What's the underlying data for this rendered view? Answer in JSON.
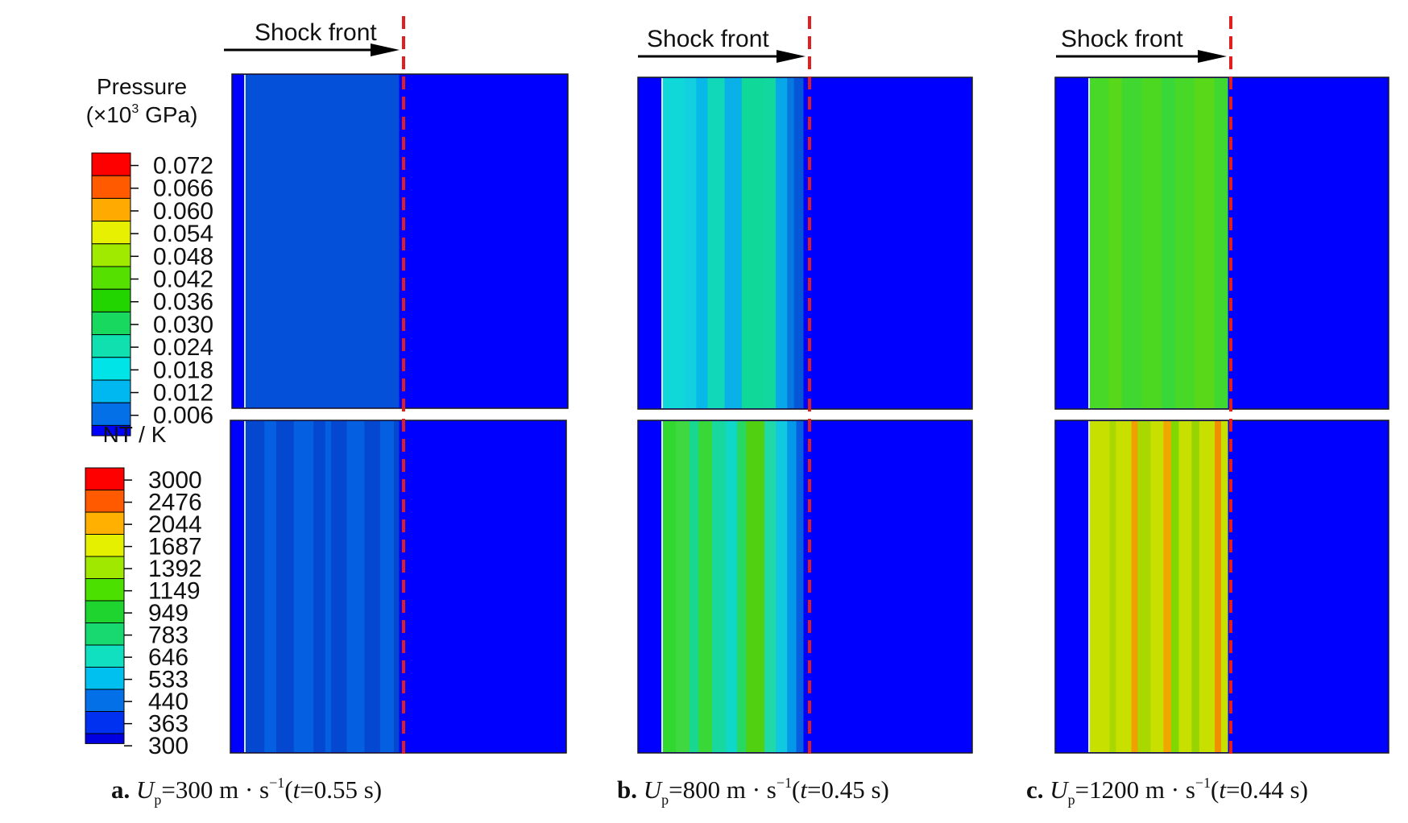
{
  "legend_pressure": {
    "title_line1": "Pressure",
    "title_line2_prefix": "(×10",
    "title_line2_sup": "3",
    "title_line2_suffix": " GPa)",
    "ticks": [
      "0.072",
      "0.066",
      "0.060",
      "0.054",
      "0.048",
      "0.042",
      "0.036",
      "0.030",
      "0.024",
      "0.018",
      "0.012",
      "0.006"
    ],
    "colors": [
      "#ff0000",
      "#ff5a00",
      "#ffaa00",
      "#e6f000",
      "#a0ea00",
      "#55e000",
      "#22d400",
      "#18d860",
      "#10e0b0",
      "#00e4e8",
      "#00b8f0",
      "#0470e8",
      "#0000ff"
    ]
  },
  "legend_temperature": {
    "title": "NT / K",
    "ticks": [
      "3000",
      "2476",
      "2044",
      "1687",
      "1392",
      "1149",
      "949",
      "783",
      "646",
      "533",
      "440",
      "363",
      "300"
    ],
    "colors": [
      "#ff0000",
      "#ff5a00",
      "#ffb000",
      "#e4f000",
      "#a0e800",
      "#4ce000",
      "#20d430",
      "#18d870",
      "#10e0c0",
      "#00c0f0",
      "#0470e8",
      "#0030f0",
      "#0000e0"
    ]
  },
  "shock_label": "Shock front",
  "panels": [
    {
      "letter": "a.",
      "up_value": "=300",
      "time_value": "=0.55",
      "pressure_band": [
        {
          "w": 1.0,
          "c": "#0450d8"
        }
      ],
      "temp_bands": [
        {
          "w": 2,
          "c": "#0448d0"
        },
        {
          "w": 1.2,
          "c": "#0460e0"
        },
        {
          "w": 1.8,
          "c": "#0448d0"
        },
        {
          "w": 2,
          "c": "#0460e0"
        },
        {
          "w": 1.2,
          "c": "#0448d0"
        },
        {
          "w": 0.6,
          "c": "#0460e0"
        },
        {
          "w": 1.6,
          "c": "#0448d0"
        },
        {
          "w": 1.8,
          "c": "#0460e0"
        },
        {
          "w": 1.6,
          "c": "#0448d0"
        },
        {
          "w": 1.4,
          "c": "#0460e0"
        },
        {
          "w": 0.5,
          "c": "#0448d0"
        }
      ]
    },
    {
      "letter": "b.",
      "up_value": "=800",
      "time_value": "=0.45",
      "pressure_band": [
        {
          "w": 2,
          "c": "#10d8d8"
        },
        {
          "w": 1,
          "c": "#12d0e0"
        },
        {
          "w": 1,
          "c": "#08b8e8"
        },
        {
          "w": 1.5,
          "c": "#10d8b8"
        },
        {
          "w": 1.5,
          "c": "#0ab0e8"
        },
        {
          "w": 2,
          "c": "#10d898"
        },
        {
          "w": 1,
          "c": "#12d8a0"
        },
        {
          "w": 1,
          "c": "#08a8e8"
        },
        {
          "w": 0.6,
          "c": "#0878e0"
        },
        {
          "w": 0.8,
          "c": "#0458d8"
        }
      ],
      "temp_bands": [
        {
          "w": 1.2,
          "c": "#30d830"
        },
        {
          "w": 1.2,
          "c": "#40d840"
        },
        {
          "w": 0.8,
          "c": "#18d890"
        },
        {
          "w": 1.2,
          "c": "#38d838"
        },
        {
          "w": 1.2,
          "c": "#18d8a0"
        },
        {
          "w": 1,
          "c": "#10d8c8"
        },
        {
          "w": 0.8,
          "c": "#28d860"
        },
        {
          "w": 1.6,
          "c": "#50d010"
        },
        {
          "w": 1,
          "c": "#20d8a8"
        },
        {
          "w": 1,
          "c": "#10c8e0"
        },
        {
          "w": 0.8,
          "c": "#0498e8"
        },
        {
          "w": 0.6,
          "c": "#0460e0"
        }
      ]
    },
    {
      "letter": "c.",
      "up_value": "=1200",
      "time_value": "=0.44",
      "pressure_band": [
        {
          "w": 1.5,
          "c": "#48d828"
        },
        {
          "w": 1,
          "c": "#58d818"
        },
        {
          "w": 1.5,
          "c": "#40d830"
        },
        {
          "w": 1.5,
          "c": "#4cd820"
        },
        {
          "w": 1,
          "c": "#38d838"
        },
        {
          "w": 1.5,
          "c": "#48d828"
        },
        {
          "w": 1.5,
          "c": "#58d818"
        },
        {
          "w": 1,
          "c": "#40d830"
        }
      ],
      "temp_bands": [
        {
          "w": 1.6,
          "c": "#c8e000"
        },
        {
          "w": 0.5,
          "c": "#a8d800"
        },
        {
          "w": 1.2,
          "c": "#c8e000"
        },
        {
          "w": 0.5,
          "c": "#f0a000"
        },
        {
          "w": 1,
          "c": "#a8d800"
        },
        {
          "w": 1,
          "c": "#c8e000"
        },
        {
          "w": 0.6,
          "c": "#f0a800"
        },
        {
          "w": 0.6,
          "c": "#80d800"
        },
        {
          "w": 1,
          "c": "#c8e000"
        },
        {
          "w": 0.6,
          "c": "#98d400"
        },
        {
          "w": 1.2,
          "c": "#c8e000"
        },
        {
          "w": 0.5,
          "c": "#f09000"
        },
        {
          "w": 0.5,
          "c": "#c8e000"
        }
      ]
    }
  ],
  "caption": {
    "U_symbol": "U",
    "U_sub": "p",
    "unit_ms": " m · s",
    "unit_exp": "−1",
    "open_paren": "(",
    "t_symbol": "t",
    "unit_s": "  s",
    "close_paren": ")"
  },
  "colors": {
    "background_blue": "#0000ff",
    "shock_line": "#e02020",
    "arrow": "#000000"
  }
}
